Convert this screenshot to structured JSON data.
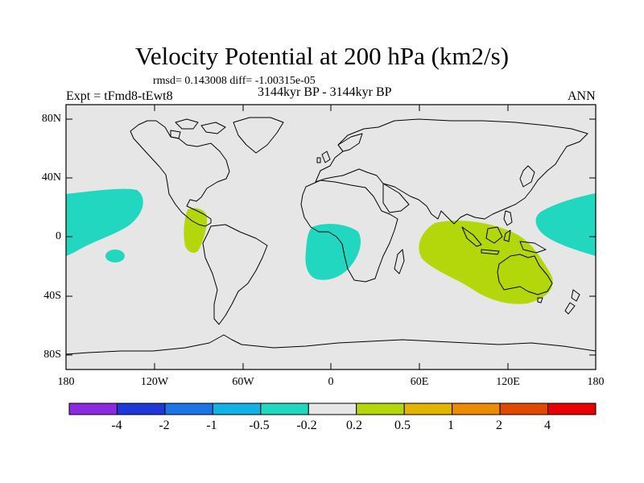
{
  "title": "Velocity Potential at 200 hPa (km2/s)",
  "stats": "rmsd= 0.143008 diff= -1.00315e-05",
  "experiment": "Expt = tFmd8-tEwt8",
  "period": "3144kyr BP - 3144kyr BP",
  "season": "ANN",
  "axes": {
    "y_ticks": [
      "80N",
      "40N",
      "0",
      "40S",
      "80S"
    ],
    "x_ticks": [
      "180",
      "120W",
      "60W",
      "0",
      "60E",
      "120E",
      "180"
    ]
  },
  "colorbar": {
    "labels": [
      "-4",
      "-2",
      "-1",
      "-0.5",
      "-0.2",
      "0.2",
      "0.5",
      "1",
      "2",
      "4"
    ],
    "colors": [
      "#8a2be2",
      "#1f36d8",
      "#1c74e6",
      "#11b3e6",
      "#22d7bf",
      "#e6e6e6",
      "#b3d70a",
      "#e2b400",
      "#ec8a00",
      "#e04a00",
      "#e60000"
    ]
  },
  "map": {
    "ocean_color": "#e6e6e6",
    "field_regions": [
      {
        "name": "central-pacific-negative",
        "bin": "-0.5 to -0.2",
        "color": "#22d7bf"
      },
      {
        "name": "small-pacific-negative",
        "bin": "-0.5 to -0.2",
        "color": "#22d7bf"
      },
      {
        "name": "east-atlantic-negative",
        "bin": "-0.5 to -0.2",
        "color": "#22d7bf"
      },
      {
        "name": "west-pacific-negative",
        "bin": "-0.5 to -0.2",
        "color": "#22d7bf"
      },
      {
        "name": "central-america-positive",
        "bin": "0.2 to 0.5",
        "color": "#b3d70a"
      },
      {
        "name": "indian-ocean-positive",
        "bin": "0.2 to 0.5",
        "color": "#b3d70a"
      }
    ]
  }
}
